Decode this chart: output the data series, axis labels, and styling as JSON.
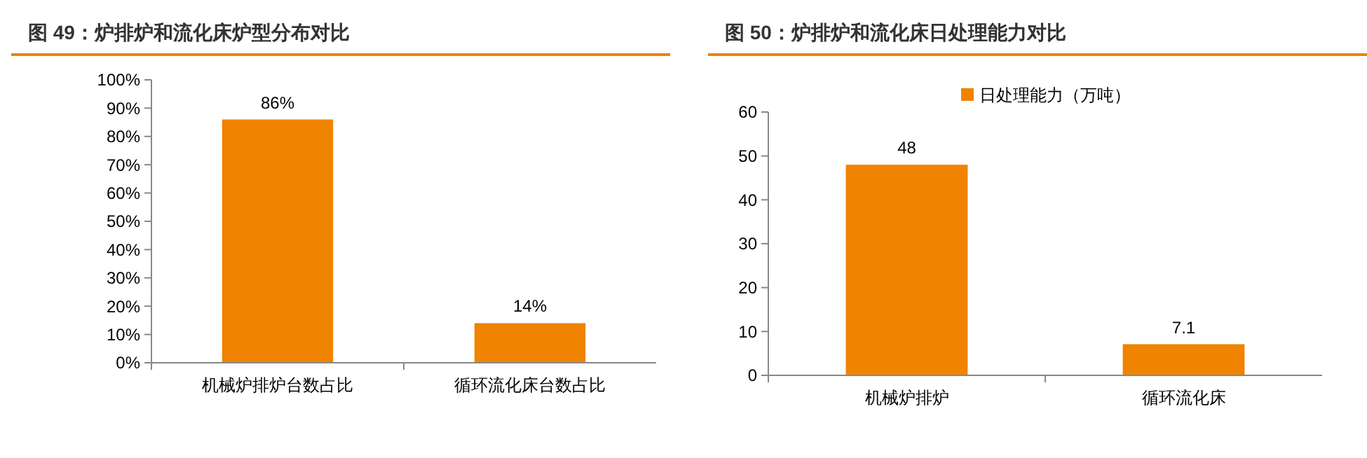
{
  "chart_data": [
    {
      "type": "bar",
      "title": "图 49：炉排炉和流化床炉型分布对比",
      "categories": [
        "机械炉排炉台数占比",
        "循环流化床台数占比"
      ],
      "series": [
        {
          "color": "#f08300",
          "values": [
            86,
            14
          ],
          "value_labels": [
            "86%",
            "14%"
          ]
        }
      ],
      "ylim": [
        0,
        100
      ],
      "yticks": [
        {
          "value": 0,
          "label": "0%"
        },
        {
          "value": 10,
          "label": "10%"
        },
        {
          "value": 20,
          "label": "20%"
        },
        {
          "value": 30,
          "label": "30%"
        },
        {
          "value": 40,
          "label": "40%"
        },
        {
          "value": 50,
          "label": "50%"
        },
        {
          "value": 60,
          "label": "60%"
        },
        {
          "value": 70,
          "label": "70%"
        },
        {
          "value": 80,
          "label": "80%"
        },
        {
          "value": 90,
          "label": "90%"
        },
        {
          "value": 100,
          "label": "100%"
        }
      ],
      "grid": false,
      "legend": false
    },
    {
      "type": "bar",
      "title": "图 50：炉排炉和流化床日处理能力对比",
      "categories": [
        "机械炉排炉",
        "循环流化床"
      ],
      "series": [
        {
          "name": "日处理能力（万吨）",
          "color": "#f08300",
          "values": [
            48,
            7.1
          ]
        }
      ],
      "ylim": [
        0,
        60
      ],
      "yticks": [
        0,
        10,
        20,
        30,
        40,
        50,
        60
      ],
      "grid": false,
      "legend": "top",
      "data_labels": true
    }
  ]
}
